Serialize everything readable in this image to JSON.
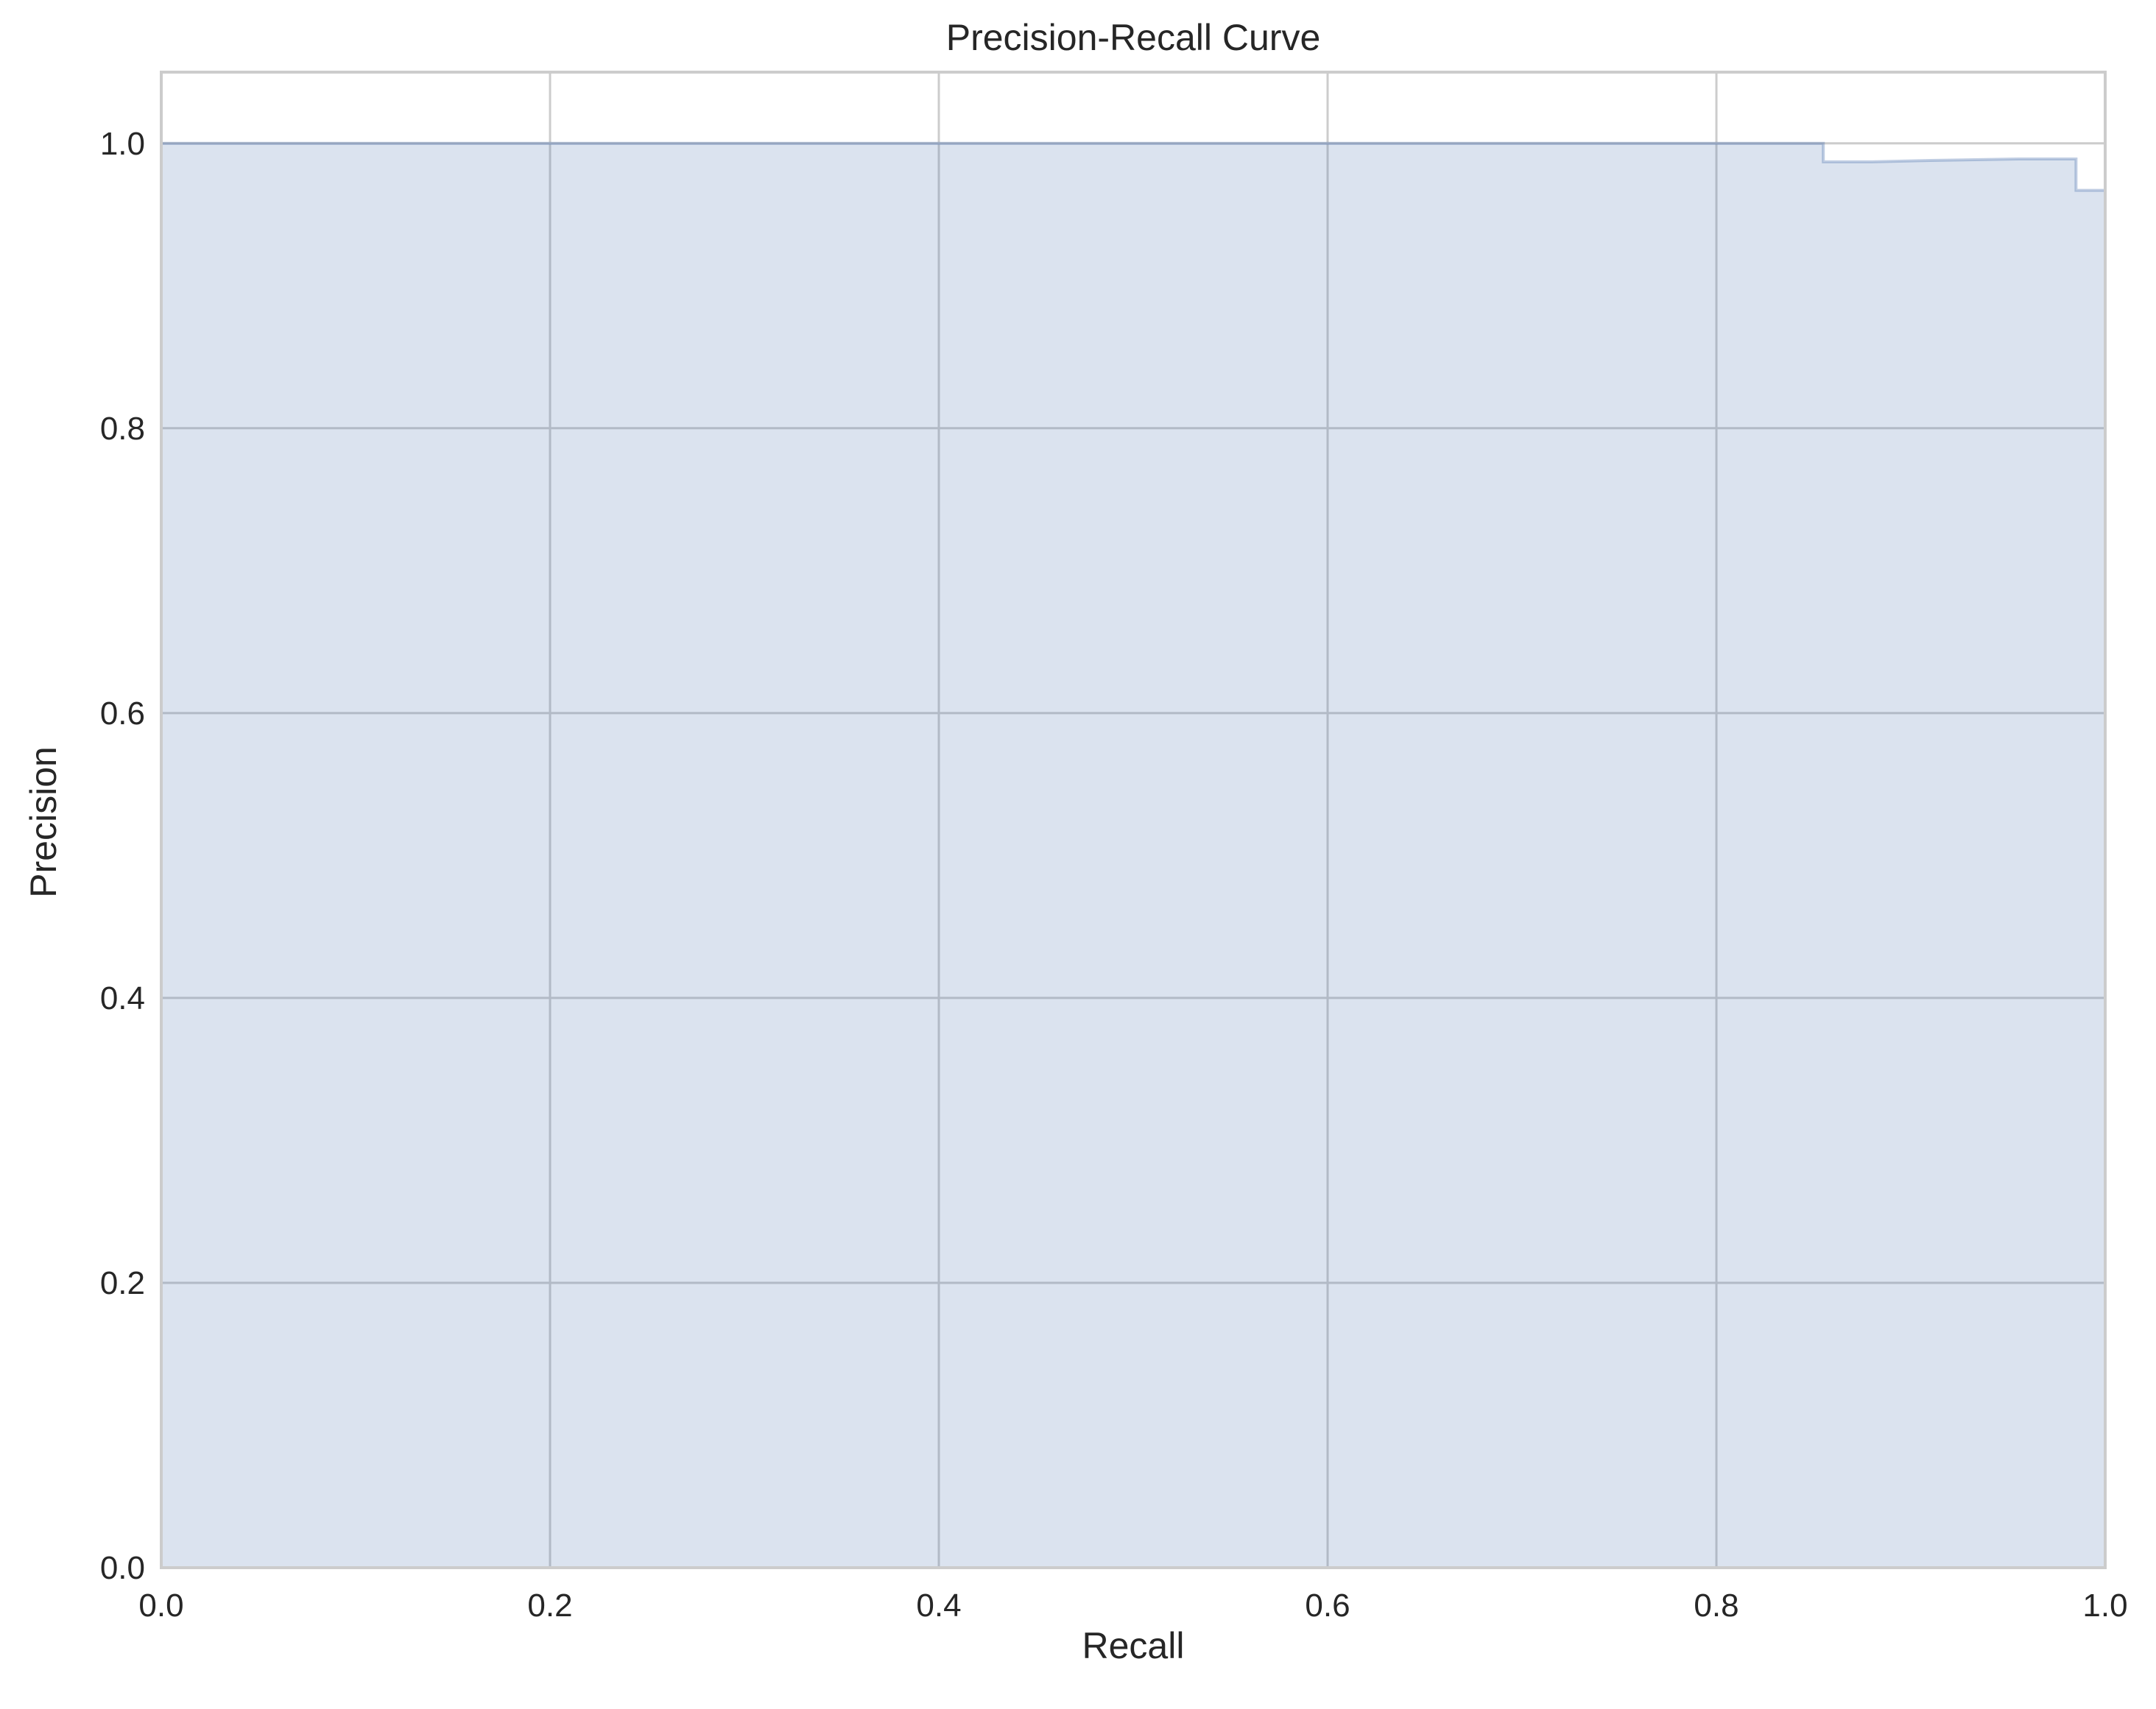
{
  "chart_data": {
    "type": "area",
    "title": "Precision-Recall Curve",
    "xlabel": "Recall",
    "ylabel": "Precision",
    "xlim": [
      0.0,
      1.0
    ],
    "ylim": [
      0.0,
      1.05
    ],
    "xticks": [
      "0.0",
      "0.2",
      "0.4",
      "0.6",
      "0.8",
      "1.0"
    ],
    "yticks": [
      "0.0",
      "0.2",
      "0.4",
      "0.6",
      "0.8",
      "1.0"
    ],
    "grid": true,
    "legend": "none",
    "step": "post",
    "series": [
      {
        "x": [
          0.0,
          0.855,
          0.855,
          0.88,
          0.91,
          0.955,
          0.985,
          0.985,
          1.0,
          1.0
        ],
        "y": [
          1.0,
          1.0,
          0.987,
          0.987,
          0.988,
          0.989,
          0.989,
          0.967,
          0.967,
          0.5
        ],
        "color": "#4c72b0",
        "fill_opacity": 0.2
      }
    ]
  }
}
